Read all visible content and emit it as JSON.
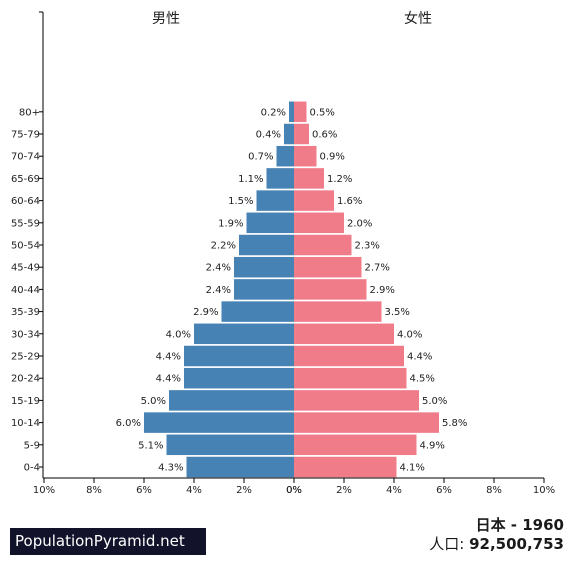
{
  "header": {
    "male_label": "男性",
    "female_label": "女性"
  },
  "footer": {
    "brand": "PopulationPyramid.net",
    "country_year": "日本 - 1960",
    "population_label": "人口:",
    "population_value": "92,500,753"
  },
  "chart_data": {
    "type": "bar",
    "orientation": "horizontal-population-pyramid",
    "categories": [
      "0-4",
      "5-9",
      "10-14",
      "15-19",
      "20-24",
      "25-29",
      "30-34",
      "35-39",
      "40-44",
      "45-49",
      "50-54",
      "55-59",
      "60-64",
      "65-69",
      "70-74",
      "75-79",
      "80+"
    ],
    "series": [
      {
        "name": "男性",
        "color": "#4682b4",
        "values": [
          4.3,
          5.1,
          6.0,
          5.0,
          4.4,
          4.4,
          4.0,
          2.9,
          2.4,
          2.4,
          2.2,
          1.9,
          1.5,
          1.1,
          0.7,
          0.4,
          0.2
        ],
        "labels": [
          "4.3%",
          "5.1%",
          "6.0%",
          "5.0%",
          "4.4%",
          "4.4%",
          "4.0%",
          "2.9%",
          "2.4%",
          "2.4%",
          "2.2%",
          "1.9%",
          "1.5%",
          "1.1%",
          "0.7%",
          "0.4%",
          "0.2%"
        ]
      },
      {
        "name": "女性",
        "color": "#f07c8a",
        "values": [
          4.1,
          4.9,
          5.8,
          5.0,
          4.5,
          4.4,
          4.0,
          3.5,
          2.9,
          2.7,
          2.3,
          2.0,
          1.6,
          1.2,
          0.9,
          0.6,
          0.5
        ],
        "labels": [
          "4.1%",
          "4.9%",
          "5.8%",
          "5.0%",
          "4.5%",
          "4.4%",
          "4.0%",
          "3.5%",
          "2.9%",
          "2.7%",
          "2.3%",
          "2.0%",
          "1.6%",
          "1.2%",
          "0.9%",
          "0.6%",
          "0.5%"
        ]
      }
    ],
    "x_ticks_left": [
      "10%",
      "8%",
      "6%",
      "4%",
      "2%",
      "0%"
    ],
    "x_ticks_right": [
      "0%",
      "2%",
      "4%",
      "6%",
      "8%",
      "10%"
    ],
    "xlim": [
      0,
      10
    ],
    "grid": false
  }
}
